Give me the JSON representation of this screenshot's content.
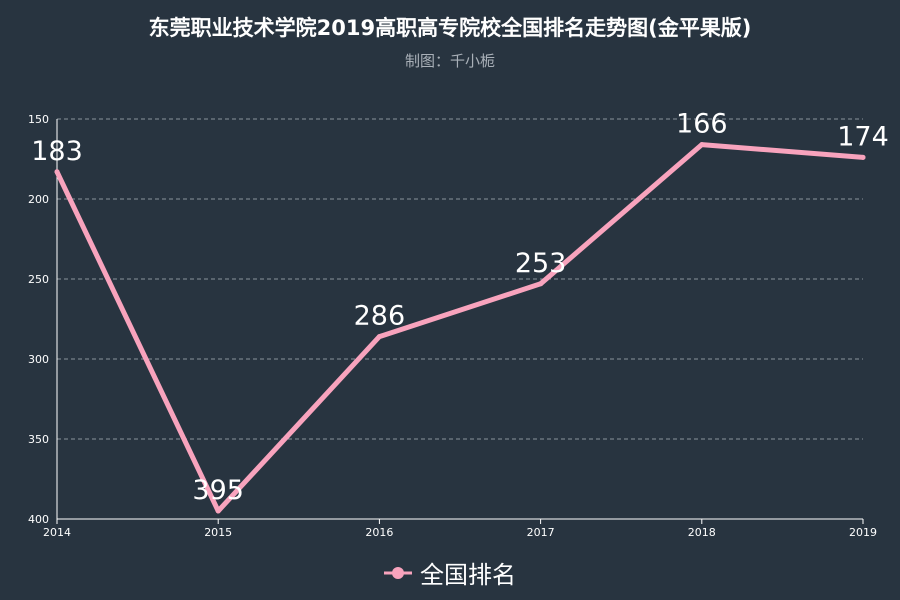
{
  "title": "东莞职业技术学院2019高职高专院校全国排名走势图(金平果版)",
  "subtitle": "制图：千小栀",
  "chart_data": {
    "type": "line",
    "x": [
      "2014",
      "2015",
      "2016",
      "2017",
      "2018",
      "2019"
    ],
    "series": [
      {
        "name": "全国排名",
        "values": [
          183,
          395,
          286,
          253,
          166,
          174
        ],
        "color": "#f8a3bd"
      }
    ],
    "yticks": [
      150,
      200,
      250,
      300,
      350,
      400
    ],
    "ylim": [
      150,
      400
    ],
    "y_inverted": true,
    "grid": true,
    "legend_position": "bottom-center",
    "data_labels": true
  },
  "colors": {
    "background": "#283440",
    "axis": "#ffffff",
    "grid": "#8a939c",
    "series": "#f8a3bd"
  }
}
